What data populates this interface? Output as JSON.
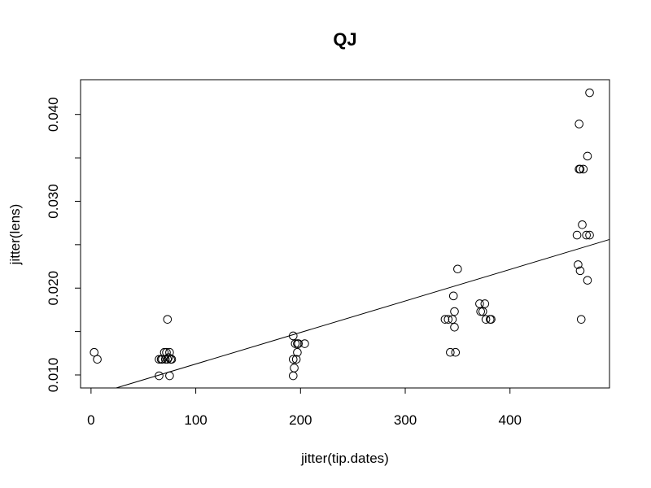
{
  "chart_data": {
    "type": "scatter",
    "title": "QJ",
    "xlabel": "jitter(tip.dates)",
    "ylabel": "jitter(lens)",
    "xlim": [
      -10,
      495
    ],
    "ylim": [
      0.0085,
      0.044
    ],
    "x_ticks": [
      0,
      100,
      200,
      300,
      400
    ],
    "x_tick_labels": [
      "0",
      "100",
      "200",
      "300",
      "400"
    ],
    "y_ticks": [
      0.01,
      0.015,
      0.02,
      0.025,
      0.03,
      0.035,
      0.04
    ],
    "y_tick_labels": [
      "0.010",
      "",
      "0.020",
      "",
      "0.030",
      "",
      "0.040"
    ],
    "grid": false,
    "marker": "open-circle",
    "points": [
      {
        "x": 3,
        "y": 0.0126
      },
      {
        "x": 6,
        "y": 0.0118
      },
      {
        "x": 65,
        "y": 0.0118
      },
      {
        "x": 67,
        "y": 0.0118
      },
      {
        "x": 68,
        "y": 0.0118
      },
      {
        "x": 70,
        "y": 0.0126
      },
      {
        "x": 71,
        "y": 0.0118
      },
      {
        "x": 72,
        "y": 0.0126
      },
      {
        "x": 73,
        "y": 0.0164
      },
      {
        "x": 73,
        "y": 0.0118
      },
      {
        "x": 74,
        "y": 0.012
      },
      {
        "x": 75,
        "y": 0.0126
      },
      {
        "x": 76,
        "y": 0.0118
      },
      {
        "x": 77,
        "y": 0.0118
      },
      {
        "x": 65,
        "y": 0.0099
      },
      {
        "x": 75,
        "y": 0.0099
      },
      {
        "x": 193,
        "y": 0.0145
      },
      {
        "x": 193,
        "y": 0.0118
      },
      {
        "x": 193,
        "y": 0.0099
      },
      {
        "x": 194,
        "y": 0.0108
      },
      {
        "x": 195,
        "y": 0.0136
      },
      {
        "x": 196,
        "y": 0.0118
      },
      {
        "x": 197,
        "y": 0.0136
      },
      {
        "x": 197,
        "y": 0.0126
      },
      {
        "x": 198,
        "y": 0.0136
      },
      {
        "x": 204,
        "y": 0.0136
      },
      {
        "x": 338,
        "y": 0.0164
      },
      {
        "x": 341,
        "y": 0.0164
      },
      {
        "x": 343,
        "y": 0.0126
      },
      {
        "x": 345,
        "y": 0.0164
      },
      {
        "x": 346,
        "y": 0.0191
      },
      {
        "x": 347,
        "y": 0.0173
      },
      {
        "x": 347,
        "y": 0.0155
      },
      {
        "x": 348,
        "y": 0.0126
      },
      {
        "x": 350,
        "y": 0.0222
      },
      {
        "x": 371,
        "y": 0.0182
      },
      {
        "x": 372,
        "y": 0.0173
      },
      {
        "x": 374,
        "y": 0.0173
      },
      {
        "x": 376,
        "y": 0.0182
      },
      {
        "x": 377,
        "y": 0.0164
      },
      {
        "x": 381,
        "y": 0.0164
      },
      {
        "x": 382,
        "y": 0.0164
      },
      {
        "x": 464,
        "y": 0.0261
      },
      {
        "x": 465,
        "y": 0.0227
      },
      {
        "x": 466,
        "y": 0.0389
      },
      {
        "x": 466,
        "y": 0.0337
      },
      {
        "x": 467,
        "y": 0.022
      },
      {
        "x": 467,
        "y": 0.0337
      },
      {
        "x": 468,
        "y": 0.0164
      },
      {
        "x": 469,
        "y": 0.0273
      },
      {
        "x": 470,
        "y": 0.0337
      },
      {
        "x": 473,
        "y": 0.0261
      },
      {
        "x": 474,
        "y": 0.0209
      },
      {
        "x": 474,
        "y": 0.0352
      },
      {
        "x": 476,
        "y": 0.0261
      },
      {
        "x": 476,
        "y": 0.0425
      }
    ],
    "regression_line": {
      "x": [
        24,
        495
      ],
      "y": [
        0.0085,
        0.0256
      ]
    }
  }
}
